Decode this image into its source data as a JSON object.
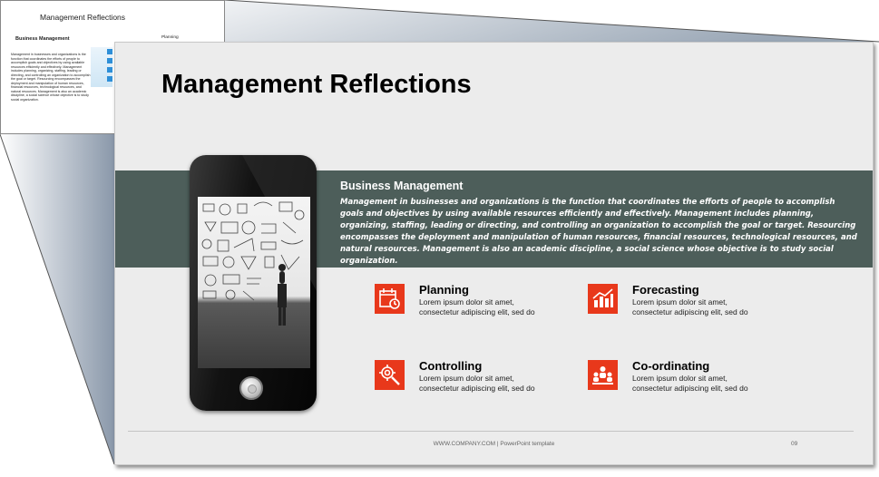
{
  "ghost_slide": {
    "title": "Management Reflections",
    "subtitle": "Business Management",
    "body": "Management in businesses and organizations is the function that coordinates the efforts of people to accomplish goals and objectives by using available resources efficiently and effectively. Management includes planning, organizing, staffing, leading or directing, and controlling an organization to accomplish the goal or target. Resourcing encompasses the deployment and manipulation of human resources, financial resources, technological resources, and natural resources. Management is also an academic discipline, a social science whose objective is to study social organization.",
    "planning_label": "Planning"
  },
  "slide": {
    "title": "Management Reflections",
    "band": {
      "title": "Business Management",
      "text": "Management in businesses and organizations is the function that coordinates the efforts of people to accomplish goals and objectives by using available resources efficiently and effectively. Management includes planning, organizing, staffing, leading or directing, and controlling an organization to accomplish the goal or target. Resourcing encompasses the deployment and manipulation of human resources, financial resources, technological resources, and natural resources. Management is also an academic discipline, a social science whose objective is to study social organization."
    },
    "features": [
      {
        "title": "Planning",
        "text": "Lorem ipsum dolor sit amet, consectetur adipiscing elit, sed do",
        "icon": "calendar-clock-icon"
      },
      {
        "title": "Forecasting",
        "text": "Lorem ipsum dolor sit amet, consectetur adipiscing elit, sed do",
        "icon": "bar-chart-icon"
      },
      {
        "title": "Controlling",
        "text": "Lorem ipsum dolor sit amet, consectetur adipiscing elit, sed do",
        "icon": "gear-magnifier-icon"
      },
      {
        "title": "Co-ordinating",
        "text": "Lorem ipsum dolor sit amet, consectetur adipiscing elit, sed do",
        "icon": "team-icon"
      }
    ],
    "footer": "WWW.COMPANY.COM | PowerPoint template",
    "page_number": "09"
  },
  "colors": {
    "accent": "#e8381b",
    "band": "#4d5e5a",
    "slide_bg": "#ececec"
  }
}
